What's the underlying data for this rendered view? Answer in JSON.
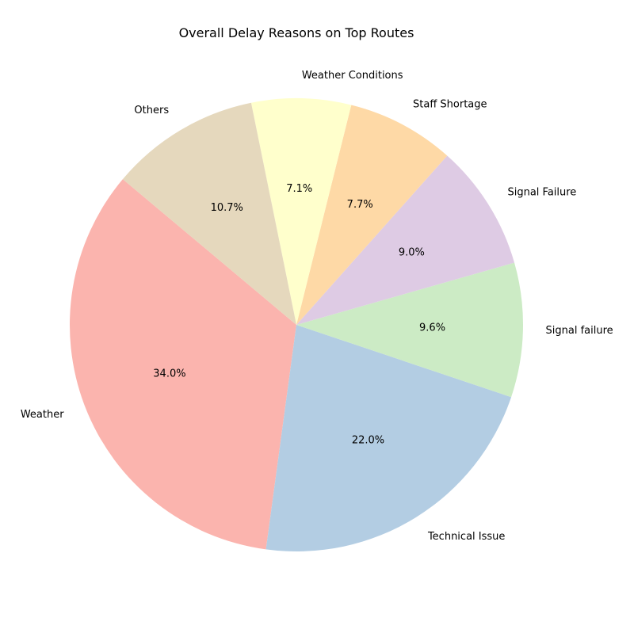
{
  "chart_data": {
    "type": "pie",
    "title": "Overall Delay Reasons on Top Routes",
    "start_angle_deg": 140,
    "direction": "counterclockwise",
    "slices": [
      {
        "label": "Weather",
        "value": 34.0,
        "pct_text": "34.0%",
        "color": "#fbb4ae"
      },
      {
        "label": "Technical Issue",
        "value": 22.0,
        "pct_text": "22.0%",
        "color": "#b3cde3"
      },
      {
        "label": "Signal failure",
        "value": 9.6,
        "pct_text": "9.6%",
        "color": "#ccebc5"
      },
      {
        "label": "Signal Failure",
        "value": 9.0,
        "pct_text": "9.0%",
        "color": "#decbe4"
      },
      {
        "label": "Staff Shortage",
        "value": 7.7,
        "pct_text": "7.7%",
        "color": "#fed9a6"
      },
      {
        "label": "Weather Conditions",
        "value": 7.1,
        "pct_text": "7.1%",
        "color": "#ffffcc"
      },
      {
        "label": "Others",
        "value": 10.7,
        "pct_text": "10.7%",
        "color": "#e5d8bd"
      }
    ]
  }
}
